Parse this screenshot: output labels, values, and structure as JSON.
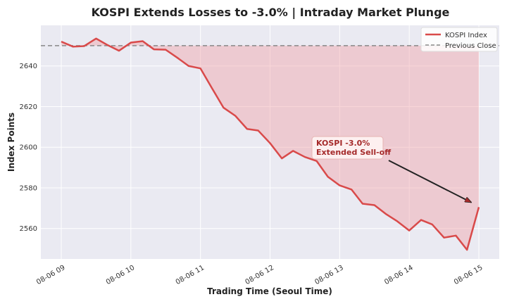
{
  "colors": {
    "line": "#d94a4a",
    "fill": "#f2a4a8",
    "reference": "#888888",
    "plot_bg": "#eaeaf2",
    "grid": "#ffffff",
    "annotation_text": "#a52a2a",
    "annotation_bg": "#fdf0f0"
  },
  "chart_data": {
    "type": "line",
    "title": "KOSPI Extends Losses to -3.0% | Intraday Market Plunge",
    "xlabel": "Trading Time (Seoul Time)",
    "ylabel": "Index Points",
    "x_ticks": [
      "08-06 09",
      "08-06 10",
      "08-06 11",
      "08-06 12",
      "08-06 13",
      "08-06 14",
      "08-06 15"
    ],
    "y_ticks": [
      2560,
      2580,
      2600,
      2620,
      2640
    ],
    "ylim": [
      2545,
      2660
    ],
    "xlim_hours": [
      9,
      15
    ],
    "grid": true,
    "legend_position": "top-right",
    "x_hours": [
      9.0,
      9.17,
      9.33,
      9.5,
      9.67,
      9.83,
      10.0,
      10.17,
      10.33,
      10.5,
      10.67,
      10.83,
      11.0,
      11.17,
      11.33,
      11.5,
      11.67,
      11.83,
      12.0,
      12.17,
      12.33,
      12.5,
      12.67,
      12.83,
      13.0,
      13.17,
      13.33,
      13.5,
      13.67,
      13.83,
      14.0,
      14.17,
      14.33,
      14.5,
      14.67,
      14.83,
      15.0
    ],
    "series": [
      {
        "name": "KOSPI Index",
        "values": [
          2652.0,
          2649.5,
          2649.8,
          2653.5,
          2650.2,
          2647.5,
          2651.5,
          2652.2,
          2648.2,
          2648.0,
          2644.0,
          2640.0,
          2638.8,
          2628.8,
          2619.5,
          2615.5,
          2609.0,
          2608.2,
          2602.0,
          2594.5,
          2598.2,
          2595.2,
          2593.2,
          2585.5,
          2581.2,
          2579.2,
          2572.2,
          2571.5,
          2567.0,
          2563.5,
          2559.0,
          2564.2,
          2562.0,
          2555.5,
          2556.5,
          2549.5,
          2570.5
        ]
      }
    ],
    "reference_line": {
      "name": "Previous Close",
      "value": 2650
    },
    "annotation": {
      "lines": [
        "KOSPI -3.0%",
        "Extended Sell-off"
      ],
      "target_hour": 14.95,
      "target_value": 2571.5
    }
  }
}
